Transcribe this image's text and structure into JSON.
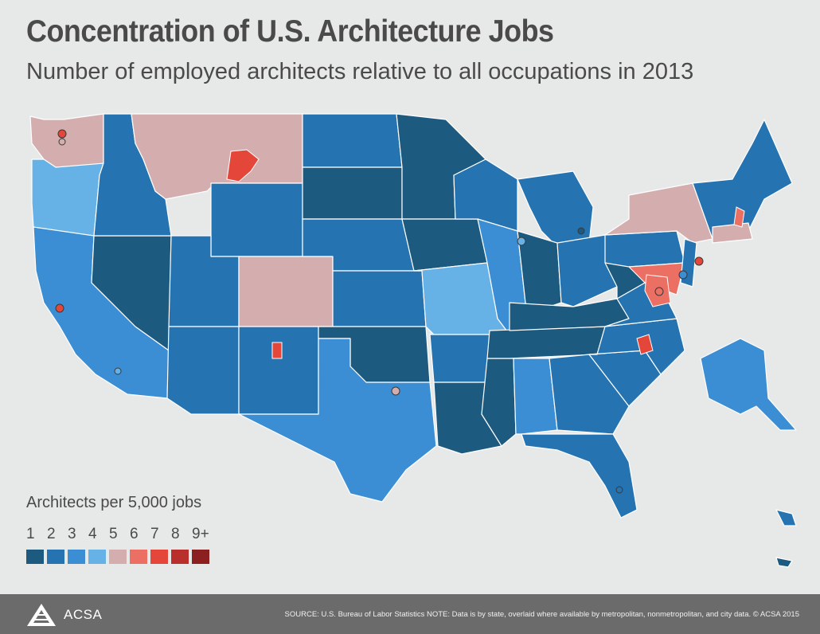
{
  "header": {
    "title": "Concentration of U.S. Architecture Jobs",
    "subtitle": "Number of employed architects relative to all occupations in 2013"
  },
  "legend": {
    "title": "Architects per 5,000 jobs",
    "items": [
      {
        "label": "1",
        "color": "#1d5a80"
      },
      {
        "label": "2",
        "color": "#2573b0"
      },
      {
        "label": "3",
        "color": "#3b8ed3"
      },
      {
        "label": "4",
        "color": "#66b1e6"
      },
      {
        "label": "5",
        "color": "#d4aeae"
      },
      {
        "label": "6",
        "color": "#ec6f63"
      },
      {
        "label": "7",
        "color": "#e4463a"
      },
      {
        "label": "8",
        "color": "#b82f2c"
      },
      {
        "label": "9+",
        "color": "#8c1f1f"
      }
    ]
  },
  "footer": {
    "brand": "ACSA",
    "source": "SOURCE: U.S. Bureau of Labor Statistics     NOTE: Data is by state, overlaid where available by metropolitan, nonmetropolitan, and city data.     © ACSA 2015"
  }
}
